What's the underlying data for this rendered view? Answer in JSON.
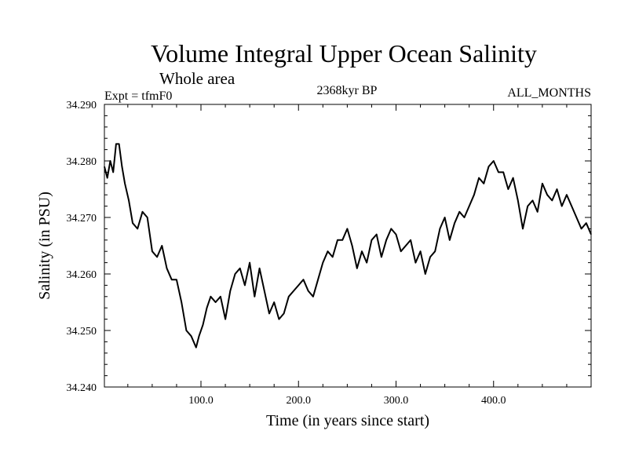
{
  "chart_data": {
    "type": "line",
    "title": "Volume Integral Upper Ocean Salinity",
    "subtitle": "Whole area",
    "left_label": "Expt = tfmF0",
    "center_label": "2368kyr BP",
    "right_label": "ALL_MONTHS",
    "xlabel": "Time (in years since start)",
    "ylabel": "Salinity (in PSU)",
    "xlim": [
      1,
      500
    ],
    "ylim": [
      34.24,
      34.29
    ],
    "x_ticks": [
      {
        "value": 100,
        "label": "100.0"
      },
      {
        "value": 200,
        "label": "200.0"
      },
      {
        "value": 300,
        "label": "300.0"
      },
      {
        "value": 400,
        "label": "400.0"
      }
    ],
    "y_ticks": [
      {
        "value": 34.24,
        "label": "34.240"
      },
      {
        "value": 34.25,
        "label": "34.250"
      },
      {
        "value": 34.26,
        "label": "34.260"
      },
      {
        "value": 34.27,
        "label": "34.270"
      },
      {
        "value": 34.28,
        "label": "34.280"
      },
      {
        "value": 34.29,
        "label": "34.290"
      }
    ],
    "series": [
      {
        "name": "salinity",
        "color": "#000000",
        "x": [
          1,
          4,
          7,
          10,
          13,
          16,
          19,
          22,
          26,
          30,
          35,
          40,
          45,
          50,
          55,
          60,
          65,
          70,
          75,
          80,
          85,
          90,
          95,
          98,
          102,
          106,
          110,
          115,
          120,
          125,
          130,
          135,
          140,
          145,
          150,
          155,
          160,
          165,
          170,
          175,
          180,
          185,
          190,
          195,
          200,
          205,
          210,
          215,
          220,
          225,
          230,
          235,
          240,
          245,
          250,
          255,
          260,
          265,
          270,
          275,
          280,
          285,
          290,
          295,
          300,
          305,
          310,
          315,
          320,
          325,
          330,
          335,
          340,
          345,
          350,
          355,
          360,
          365,
          370,
          375,
          380,
          385,
          390,
          395,
          400,
          405,
          410,
          415,
          420,
          425,
          430,
          435,
          440,
          445,
          450,
          455,
          460,
          465,
          470,
          475,
          480,
          485,
          490,
          495,
          500
        ],
        "values": [
          34.279,
          34.277,
          34.28,
          34.278,
          34.283,
          34.283,
          34.279,
          34.276,
          34.273,
          34.269,
          34.268,
          34.271,
          34.27,
          34.264,
          34.263,
          34.265,
          34.261,
          34.259,
          34.259,
          34.255,
          34.25,
          34.249,
          34.247,
          34.249,
          34.251,
          34.254,
          34.256,
          34.255,
          34.256,
          34.252,
          34.257,
          34.26,
          34.261,
          34.258,
          34.262,
          34.256,
          34.261,
          34.257,
          34.253,
          34.255,
          34.252,
          34.253,
          34.256,
          34.257,
          34.258,
          34.259,
          34.257,
          34.256,
          34.259,
          34.262,
          34.264,
          34.263,
          34.266,
          34.266,
          34.268,
          34.265,
          34.261,
          34.264,
          34.262,
          34.266,
          34.267,
          34.263,
          34.266,
          34.268,
          34.267,
          34.264,
          34.265,
          34.266,
          34.262,
          34.264,
          34.26,
          34.263,
          34.264,
          34.268,
          34.27,
          34.266,
          34.269,
          34.271,
          34.27,
          34.272,
          34.274,
          34.277,
          34.276,
          34.279,
          34.28,
          34.278,
          34.278,
          34.275,
          34.277,
          34.273,
          34.268,
          34.272,
          34.273,
          34.271,
          34.276,
          34.274,
          34.273,
          34.275,
          34.272,
          34.274,
          34.272,
          34.27,
          34.268,
          34.269,
          34.267
        ]
      }
    ]
  }
}
